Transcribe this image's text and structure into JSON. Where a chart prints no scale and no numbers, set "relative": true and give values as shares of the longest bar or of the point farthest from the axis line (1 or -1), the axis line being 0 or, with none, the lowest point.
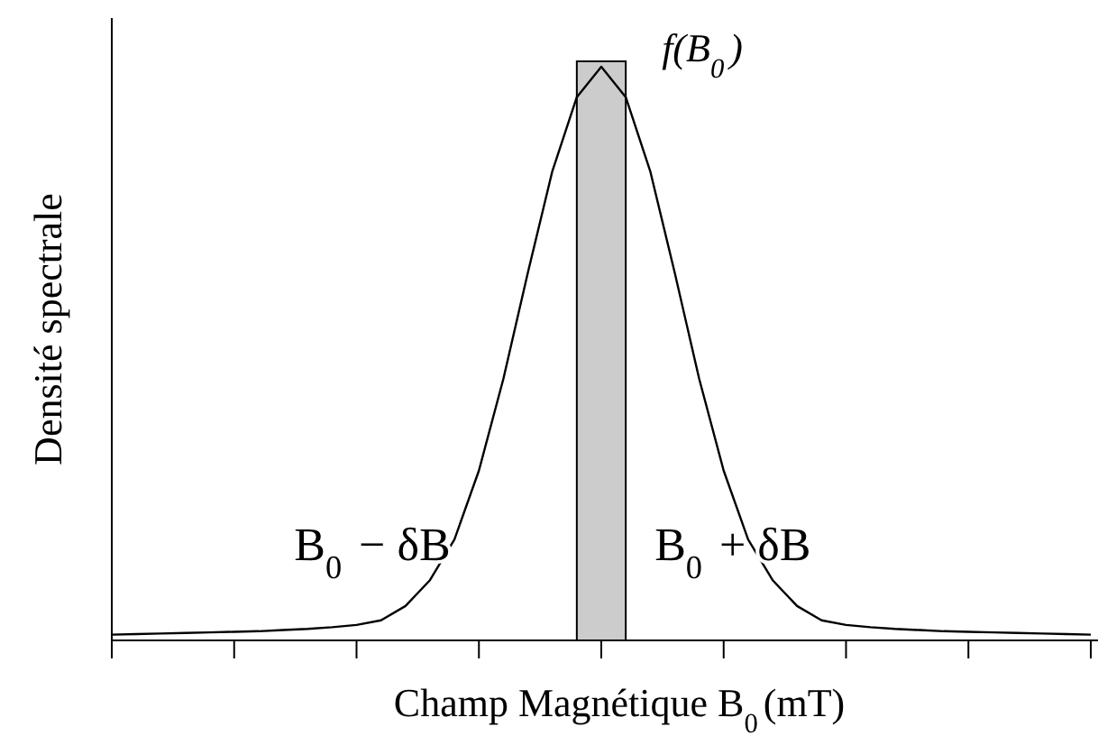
{
  "chart_data": {
    "type": "line",
    "relative": true,
    "xlabel": "Champ Magnétique B$_{0}$(mT)",
    "ylabel": "Densité spectrale",
    "categories": [
      null,
      null,
      null,
      null,
      null,
      null,
      null,
      null,
      null,
      null,
      null,
      null,
      null,
      null,
      null,
      null,
      null,
      null,
      null,
      null,
      null,
      null,
      null,
      null,
      null,
      null,
      null,
      null,
      null,
      null,
      null,
      null,
      null,
      null,
      null,
      null,
      null,
      null,
      null,
      null,
      null
    ],
    "series": [
      {
        "color": "#000000",
        "values": [
          0.01,
          0.011,
          0.012,
          0.013,
          0.014,
          0.015,
          0.016,
          0.018,
          0.02,
          0.023,
          0.027,
          0.035,
          0.06,
          0.105,
          0.176,
          0.296,
          0.456,
          0.641,
          0.818,
          0.947,
          1,
          0.947,
          0.818,
          0.641,
          0.456,
          0.296,
          0.176,
          0.105,
          0.06,
          0.035,
          0.027,
          0.023,
          0.02,
          0.018,
          0.016,
          0.015,
          0.014,
          0.013,
          0.012,
          0.011,
          0.01
        ]
      }
    ],
    "annotations": [
      "f(B$_{0}$)",
      "B$_{0}$ − δB",
      "B$_{0}$ + δB"
    ],
    "marker": "none",
    "line_style": "solid"
  }
}
